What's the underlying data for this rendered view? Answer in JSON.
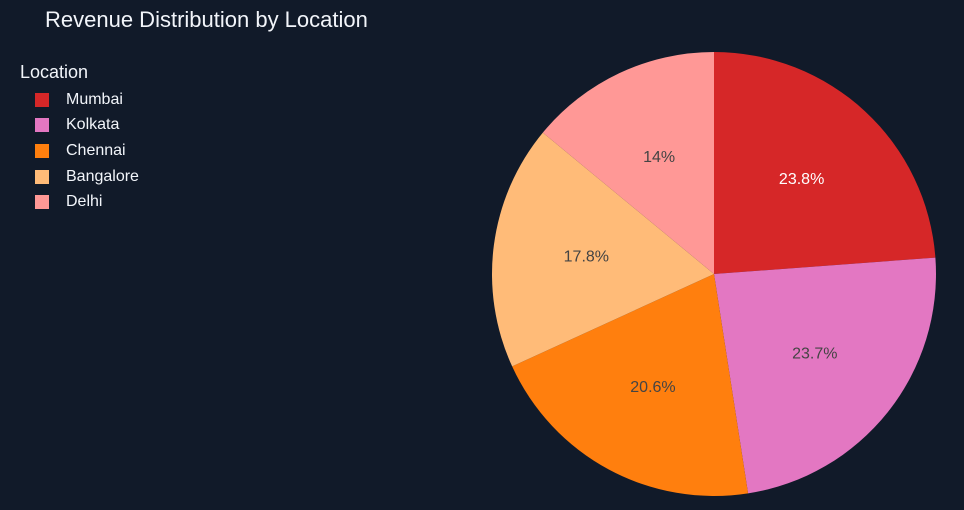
{
  "chart_data": {
    "type": "pie",
    "title": "Revenue Distribution by Location",
    "legend_title": "Location",
    "legend_position": "top-left",
    "categories": [
      "Mumbai",
      "Kolkata",
      "Chennai",
      "Bangalore",
      "Delhi"
    ],
    "values": [
      23.8,
      23.7,
      20.6,
      17.8,
      14.0
    ],
    "labels": [
      "23.8%",
      "23.7%",
      "20.6%",
      "17.8%",
      "14%"
    ],
    "colors": [
      "#d62728",
      "#e377c2",
      "#ff7f0e",
      "#ffbb78",
      "#ff9896"
    ],
    "label_colors": [
      "#ffffff",
      "#444444",
      "#444444",
      "#444444",
      "#444444"
    ]
  }
}
